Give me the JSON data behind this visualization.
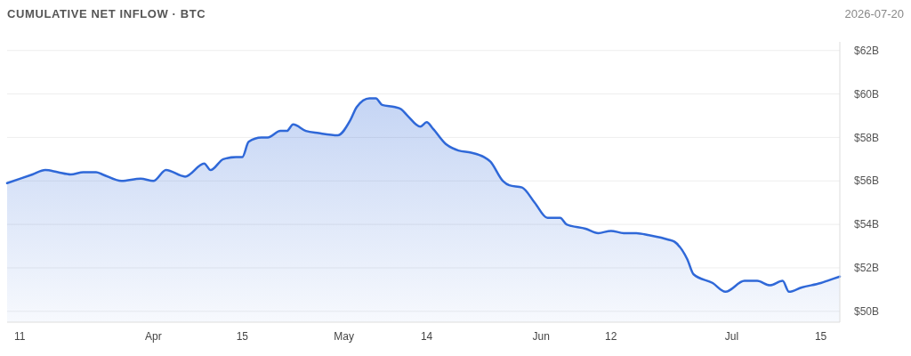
{
  "chart_data": {
    "type": "area",
    "title": "CUMULATIVE NET INFLOW · BTC",
    "subtitle": "2026-07-20",
    "x": [
      "2026-03-09",
      "2026-03-13",
      "2026-03-15",
      "2026-03-17",
      "2026-03-19",
      "2026-03-21",
      "2026-03-23",
      "2026-03-24",
      "2026-03-27",
      "2026-03-30",
      "2026-04-01",
      "2026-04-03",
      "2026-04-06",
      "2026-04-09",
      "2026-04-10",
      "2026-04-12",
      "2026-04-14",
      "2026-04-15",
      "2026-04-16",
      "2026-04-18",
      "2026-04-19",
      "2026-04-21",
      "2026-04-22",
      "2026-04-23",
      "2026-04-25",
      "2026-04-27",
      "2026-04-30",
      "2026-05-02",
      "2026-05-03",
      "2026-05-05",
      "2026-05-06",
      "2026-05-07",
      "2026-05-09",
      "2026-05-10",
      "2026-05-11",
      "2026-05-13",
      "2026-05-14",
      "2026-05-15",
      "2026-05-17",
      "2026-05-19",
      "2026-05-21",
      "2026-05-23",
      "2026-05-24",
      "2026-05-26",
      "2026-05-27",
      "2026-05-29",
      "2026-05-31",
      "2026-06-02",
      "2026-06-04",
      "2026-06-05",
      "2026-06-08",
      "2026-06-10",
      "2026-06-12",
      "2026-06-14",
      "2026-06-16",
      "2026-06-18",
      "2026-06-21",
      "2026-06-22",
      "2026-06-24",
      "2026-06-25",
      "2026-06-28",
      "2026-06-30",
      "2026-07-03",
      "2026-07-05",
      "2026-07-07",
      "2026-07-09",
      "2026-07-10",
      "2026-07-12",
      "2026-07-15",
      "2026-07-16",
      "2026-07-18"
    ],
    "series": [
      {
        "color": "#2f68d8",
        "values": [
          55.9,
          56.3,
          56.5,
          56.4,
          56.3,
          56.4,
          56.4,
          56.3,
          56.0,
          56.1,
          56.0,
          56.5,
          56.2,
          56.8,
          56.5,
          57.0,
          57.1,
          57.1,
          57.8,
          58.0,
          58.0,
          58.3,
          58.3,
          58.6,
          58.3,
          58.2,
          58.1,
          58.8,
          59.4,
          59.8,
          59.8,
          59.5,
          59.4,
          59.3,
          59.0,
          58.5,
          58.7,
          58.4,
          57.7,
          57.4,
          57.3,
          57.1,
          56.9,
          56.0,
          55.8,
          55.7,
          55.0,
          54.3,
          54.3,
          54.0,
          53.8,
          53.6,
          53.7,
          53.6,
          53.6,
          53.5,
          53.3,
          53.2,
          52.4,
          51.7,
          51.3,
          50.9,
          51.4,
          51.4,
          51.2,
          51.4,
          50.9,
          51.1,
          51.3,
          51.4,
          51.6
        ]
      }
    ],
    "xlim": [
      "2026-03-09",
      "2026-07-18"
    ],
    "xticks": [
      {
        "value": "2026-03-11",
        "label": "11"
      },
      {
        "value": "2026-04-01",
        "label": "Apr"
      },
      {
        "value": "2026-04-15",
        "label": "15"
      },
      {
        "value": "2026-05-01",
        "label": "May"
      },
      {
        "value": "2026-05-14",
        "label": "14"
      },
      {
        "value": "2026-06-01",
        "label": "Jun"
      },
      {
        "value": "2026-06-12",
        "label": "12"
      },
      {
        "value": "2026-07-01",
        "label": "Jul"
      },
      {
        "value": "2026-07-15",
        "label": "15"
      }
    ],
    "ylim": [
      49.5,
      62.4
    ],
    "yticks": [
      {
        "value": 50,
        "label": "$50B"
      },
      {
        "value": 52,
        "label": "$52B"
      },
      {
        "value": 54,
        "label": "$54B"
      },
      {
        "value": 56,
        "label": "$56B"
      },
      {
        "value": 58,
        "label": "$58B"
      },
      {
        "value": 60,
        "label": "$60B"
      },
      {
        "value": 62,
        "label": "$62B"
      }
    ],
    "grid": "y"
  }
}
